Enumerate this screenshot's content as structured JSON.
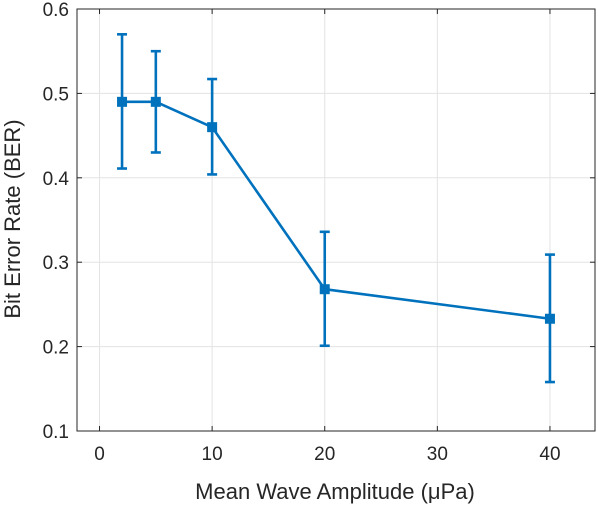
{
  "chart_data": {
    "type": "line",
    "title": "",
    "xlabel": "Mean Wave Amplitude (μPa)",
    "ylabel": "Bit Error Rate (BER)",
    "xlim": [
      -2,
      44
    ],
    "ylim": [
      0.1,
      0.6
    ],
    "xticks": [
      0,
      10,
      20,
      30,
      40
    ],
    "yticks": [
      0.1,
      0.2,
      0.3,
      0.4,
      0.5,
      0.6
    ],
    "xtick_labels": [
      "0",
      "10",
      "20",
      "30",
      "40"
    ],
    "ytick_labels": [
      "0.1",
      "0.2",
      "0.3",
      "0.4",
      "0.5",
      "0.6"
    ],
    "grid": true,
    "marker": "square",
    "series": [
      {
        "x": [
          2,
          5,
          10,
          20,
          40
        ],
        "y": [
          0.49,
          0.49,
          0.46,
          0.268,
          0.233
        ],
        "error_lower": [
          0.411,
          0.43,
          0.404,
          0.201,
          0.158
        ],
        "error_upper": [
          0.57,
          0.55,
          0.517,
          0.336,
          0.309
        ],
        "color": "#0072BD"
      }
    ]
  }
}
